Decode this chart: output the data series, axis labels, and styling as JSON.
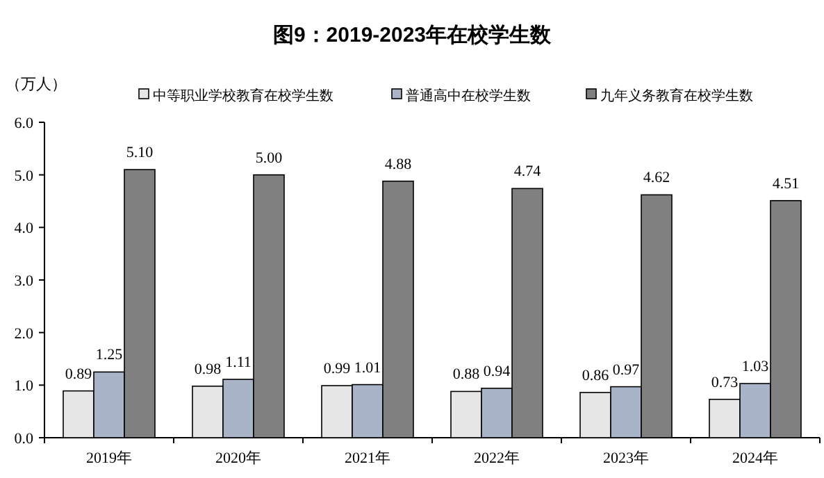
{
  "chart_data": {
    "type": "bar",
    "title": "图9：2019-2023年在校学生数",
    "ylabel": "（万人）",
    "categories": [
      "2019年",
      "2020年",
      "2021年",
      "2022年",
      "2023年",
      "2024年"
    ],
    "series": [
      {
        "name": "中等职业学校教育在校学生数",
        "color": "#e6e6e6",
        "values": [
          0.89,
          0.98,
          0.99,
          0.88,
          0.86,
          0.73
        ]
      },
      {
        "name": "普通高中在校学生数",
        "color": "#aab4c8",
        "values": [
          1.25,
          1.11,
          1.01,
          0.94,
          0.97,
          1.03
        ]
      },
      {
        "name": "九年义务教育在校学生数",
        "color": "#808080",
        "values": [
          5.1,
          5.0,
          4.88,
          4.74,
          4.62,
          4.51
        ]
      }
    ],
    "ylim": [
      0,
      6
    ],
    "yticks": [
      {
        "value": 0,
        "label": "0.0"
      },
      {
        "value": 1,
        "label": "1.0"
      },
      {
        "value": 2,
        "label": "2.0"
      },
      {
        "value": 3,
        "label": "3.0"
      },
      {
        "value": 4,
        "label": "4.0"
      },
      {
        "value": 5,
        "label": "5.0"
      },
      {
        "value": 6,
        "label": "6.0"
      }
    ],
    "value_labels": [
      [
        "0.89",
        "0.98",
        "0.99",
        "0.88",
        "0.86",
        "0.73"
      ],
      [
        "1.25",
        "1.11",
        "1.01",
        "0.94",
        "0.97",
        "1.03"
      ],
      [
        "5.10",
        "5.00",
        "4.88",
        "4.74",
        "4.62",
        "4.51"
      ]
    ],
    "legend": "top",
    "grid": false
  }
}
